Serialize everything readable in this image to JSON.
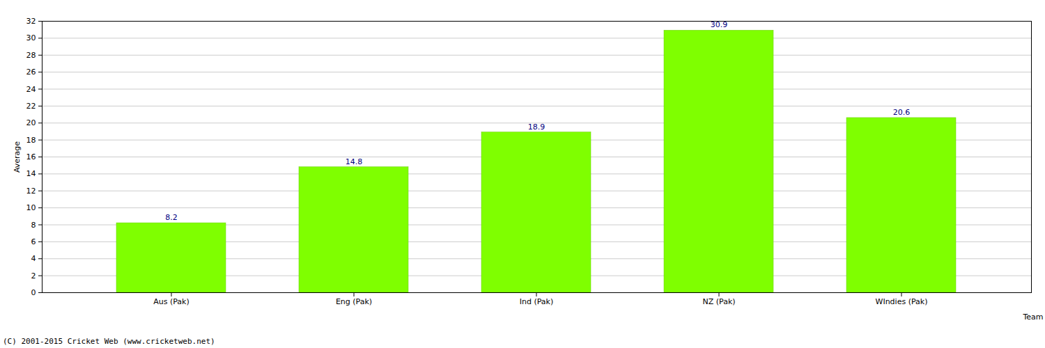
{
  "chart_data": {
    "type": "bar",
    "categories": [
      "Aus (Pak)",
      "Eng (Pak)",
      "Ind (Pak)",
      "NZ (Pak)",
      "WIndies (Pak)"
    ],
    "values": [
      8.2,
      14.8,
      18.9,
      30.9,
      20.6
    ],
    "color": "#7fff00",
    "x_label": "Team",
    "y_label": "Average",
    "caption": "(C) 2001-2015 Cricket Web (www.cricketweb.net)",
    "ylim": [
      0,
      32
    ],
    "yticks": [
      0,
      2,
      4,
      6,
      8,
      10,
      12,
      14,
      16,
      18,
      20,
      22,
      24,
      26,
      28,
      30,
      32
    ],
    "grid": true,
    "data_labels": true
  }
}
